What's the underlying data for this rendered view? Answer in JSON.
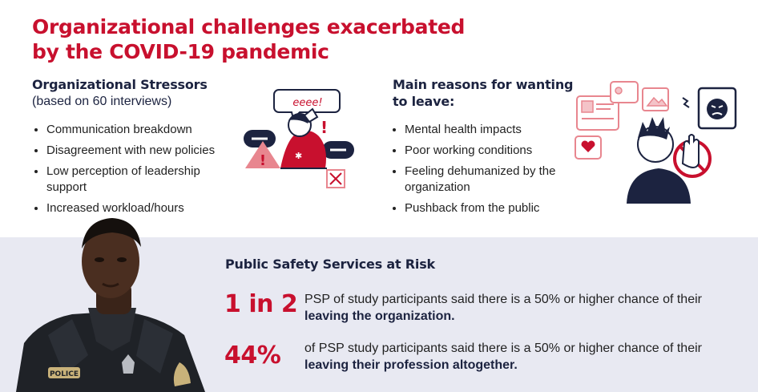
{
  "title": {
    "line1": "Organizational challenges exacerbated",
    "line2": "by the COVID-19 pandemic"
  },
  "stressors": {
    "heading": "Organizational Stressors",
    "subheading": "(based on 60 interviews)",
    "items": [
      "Communication breakdown",
      "Disagreement with new policies",
      "Low perception of leadership support",
      "Increased workload/hours"
    ]
  },
  "reasons": {
    "heading_line1": "Main reasons for wanting",
    "heading_line2": "to leave:",
    "items": [
      "Mental health impacts",
      "Poor working conditions",
      "Feeling dehumanized by the organization",
      "Pushback from the public"
    ]
  },
  "risk": {
    "heading": "Public Safety Services at Risk",
    "stats": [
      {
        "value": "1 in 2",
        "text_before": "PSP of study participants said there is a 50% or higher chance of their ",
        "text_bold": "leaving the organization."
      },
      {
        "value": "44%",
        "text_before": "of PSP study participants said there is a 50% or higher chance of their ",
        "text_bold": "leaving their profession altogether."
      }
    ]
  },
  "illustrations": {
    "speech_bubble_text": "eeee!",
    "badge_text": "POLICE"
  },
  "colors": {
    "accent": "#c8102e",
    "navy": "#1c2340",
    "pink": "#e8868f",
    "band": "#e8e9f2"
  }
}
